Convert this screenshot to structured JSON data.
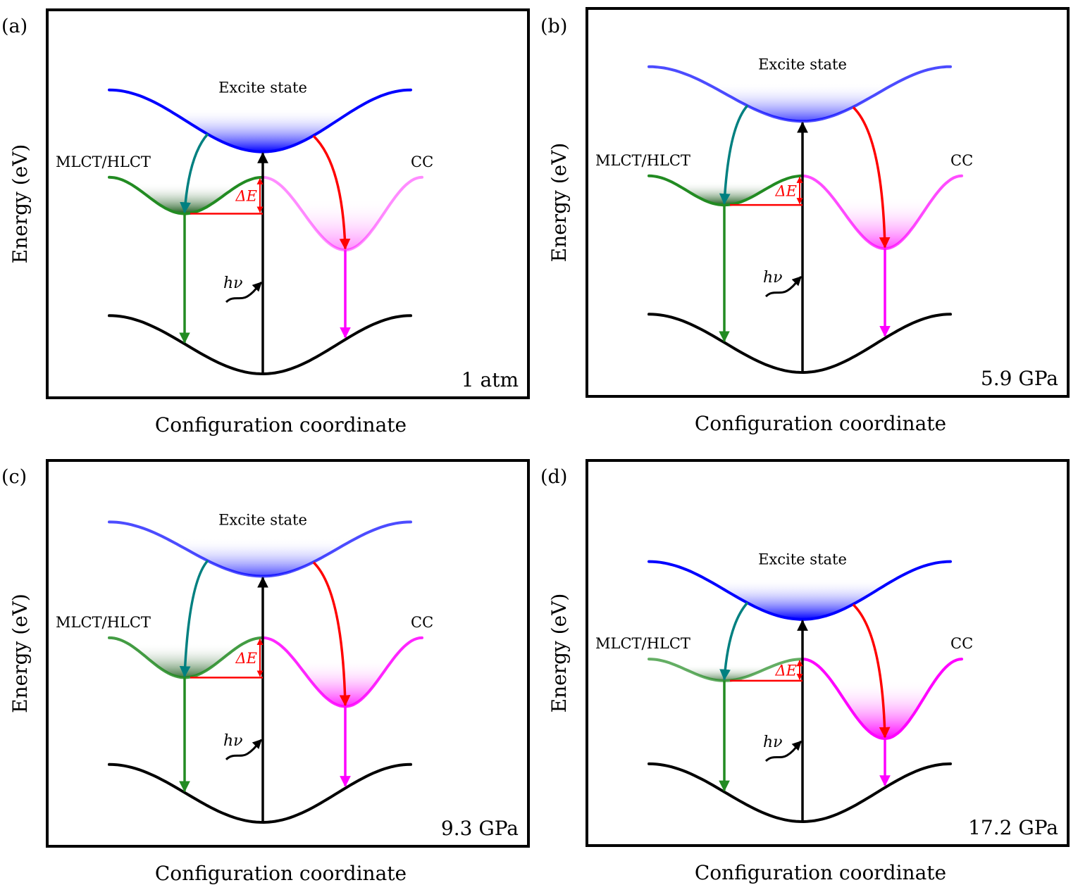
{
  "figure": {
    "y_axis_label": "Energy (eV)",
    "x_axis_label": "Configuration coordinate",
    "excite_label": "Excite state",
    "mlct_label": "MLCT/HLCT",
    "cc_label": "CC",
    "delta_e_label": "ΔE",
    "photon_label": "hν"
  },
  "colors": {
    "excite_state": "#0000ff",
    "mlct_state": "#228b22",
    "cc_state": "#ff00ff",
    "ground_state": "#000000",
    "transfer_to_mlct": "#008080",
    "transfer_to_cc": "#ff0000",
    "delta_e": "#ff0000",
    "frame": "#000000"
  },
  "chart_data": {
    "type": "diagram",
    "description": "Configuration coordinate energy diagrams of excited-state (MLCT/HLCT and CC) relaxation under increasing pressure. Energy levels are in relative units (0 = ground-state minimum, 1 = top of frame).",
    "panels": [
      {
        "id": "a",
        "tag": "(a)",
        "pressure": "1 atm",
        "excite_min": 0.61,
        "excite_edge": 0.78,
        "excite_opacity": 1.0,
        "mlct_min": 0.44,
        "mlct_edge": 0.54,
        "mlct_opacity": 1.0,
        "cc_min": 0.34,
        "cc_edge": 0.54,
        "cc_opacity": 0.45,
        "ground_edge": 0.16
      },
      {
        "id": "b",
        "tag": "(b)",
        "pressure": "5.9 GPa",
        "excite_min": 0.69,
        "excite_edge": 0.84,
        "excite_opacity": 0.7,
        "mlct_min": 0.46,
        "mlct_edge": 0.54,
        "mlct_opacity": 1.0,
        "cc_min": 0.34,
        "cc_edge": 0.54,
        "cc_opacity": 0.7,
        "ground_edge": 0.16
      },
      {
        "id": "c",
        "tag": "(c)",
        "pressure": "9.3 GPa",
        "excite_min": 0.68,
        "excite_edge": 0.83,
        "excite_opacity": 0.7,
        "mlct_min": 0.4,
        "mlct_edge": 0.51,
        "mlct_opacity": 0.85,
        "cc_min": 0.32,
        "cc_edge": 0.51,
        "cc_opacity": 0.85,
        "ground_edge": 0.16
      },
      {
        "id": "d",
        "tag": "(d)",
        "pressure": "17.2 GPa",
        "excite_min": 0.56,
        "excite_edge": 0.72,
        "excite_opacity": 1.0,
        "mlct_min": 0.39,
        "mlct_edge": 0.45,
        "mlct_opacity": 0.7,
        "cc_min": 0.23,
        "cc_edge": 0.45,
        "cc_opacity": 1.0,
        "ground_edge": 0.16
      }
    ]
  }
}
